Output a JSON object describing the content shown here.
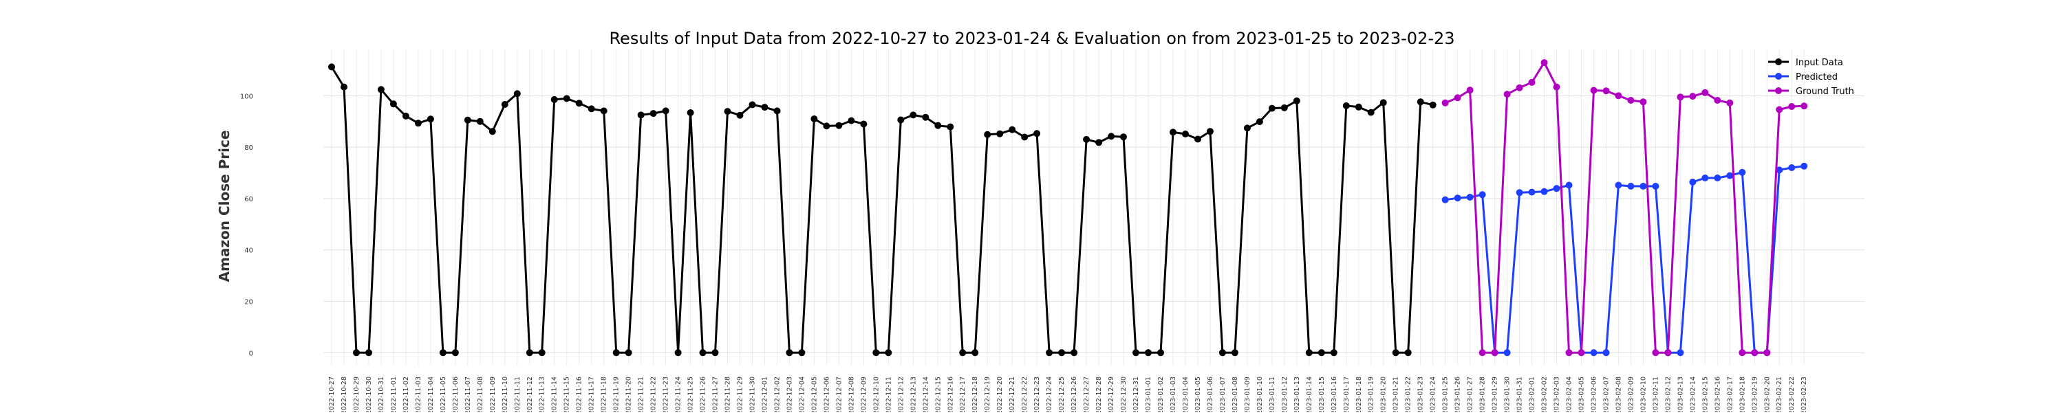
{
  "chart_data": {
    "type": "line",
    "title": "Results of Input Data from 2022-10-27 to 2023-01-24 & Evaluation on from 2023-01-25 to 2023-02-23",
    "xlabel": "",
    "ylabel": "Amazon Close Price",
    "ylim": [
      -5,
      118
    ],
    "yticks": [
      0,
      20,
      40,
      60,
      80,
      100
    ],
    "grid": true,
    "legend_position": "top-right",
    "categories": [
      "2022-10-27",
      "2022-10-28",
      "2022-10-29",
      "2022-10-30",
      "2022-10-31",
      "2022-11-01",
      "2022-11-02",
      "2022-11-03",
      "2022-11-04",
      "2022-11-05",
      "2022-11-06",
      "2022-11-07",
      "2022-11-08",
      "2022-11-09",
      "2022-11-10",
      "2022-11-11",
      "2022-11-12",
      "2022-11-13",
      "2022-11-14",
      "2022-11-15",
      "2022-11-16",
      "2022-11-17",
      "2022-11-18",
      "2022-11-19",
      "2022-11-20",
      "2022-11-21",
      "2022-11-22",
      "2022-11-23",
      "2022-11-24",
      "2022-11-25",
      "2022-11-26",
      "2022-11-27",
      "2022-11-28",
      "2022-11-29",
      "2022-11-30",
      "2022-12-01",
      "2022-12-02",
      "2022-12-03",
      "2022-12-04",
      "2022-12-05",
      "2022-12-06",
      "2022-12-07",
      "2022-12-08",
      "2022-12-09",
      "2022-12-10",
      "2022-12-11",
      "2022-12-12",
      "2022-12-13",
      "2022-12-14",
      "2022-12-15",
      "2022-12-16",
      "2022-12-17",
      "2022-12-18",
      "2022-12-19",
      "2022-12-20",
      "2022-12-21",
      "2022-12-22",
      "2022-12-23",
      "2022-12-24",
      "2022-12-25",
      "2022-12-26",
      "2022-12-27",
      "2022-12-28",
      "2022-12-29",
      "2022-12-30",
      "2022-12-31",
      "2023-01-01",
      "2023-01-02",
      "2023-01-03",
      "2023-01-04",
      "2023-01-05",
      "2023-01-06",
      "2023-01-07",
      "2023-01-08",
      "2023-01-09",
      "2023-01-10",
      "2023-01-11",
      "2023-01-12",
      "2023-01-13",
      "2023-01-14",
      "2023-01-15",
      "2023-01-16",
      "2023-01-17",
      "2023-01-18",
      "2023-01-19",
      "2023-01-20",
      "2023-01-21",
      "2023-01-22",
      "2023-01-23",
      "2023-01-24",
      "2023-01-25",
      "2023-01-26",
      "2023-01-27",
      "2023-01-28",
      "2023-01-29",
      "2023-01-30",
      "2023-01-31",
      "2023-02-01",
      "2023-02-02",
      "2023-02-03",
      "2023-02-04",
      "2023-02-05",
      "2023-02-06",
      "2023-02-07",
      "2023-02-08",
      "2023-02-09",
      "2023-02-10",
      "2023-02-11",
      "2023-02-12",
      "2023-02-13",
      "2023-02-14",
      "2023-02-15",
      "2023-02-16",
      "2023-02-17",
      "2023-02-18",
      "2023-02-19",
      "2023-02-20",
      "2023-02-21",
      "2023-02-22",
      "2023-02-23"
    ],
    "xtick_labels": [
      "2022-10-27",
      "2022-10-28",
      "2022-10-29",
      "2022-10-30",
      "2022-10-31",
      "2022-11-01",
      "2022-11-02",
      "2022-11-03",
      "2022-11-04",
      "2022-11-05",
      "2022-11-06",
      "2022-11-07",
      "2022-11-08",
      "2022-11-09",
      "2022-11-10",
      "2022-11-11",
      "2022-11-12",
      "2022-11-13",
      "2022-11-14",
      "2022-11-15",
      "2022-11-16",
      "2022-11-17",
      "2022-11-18",
      "2022-11-19",
      "2022-11-20",
      "2022-11-21",
      "2022-11-22",
      "2022-11-23",
      "2022-11-24",
      "2022-11-25",
      "2022-11-26",
      "2022-11-27",
      "2022-11-28",
      "2022-11-29",
      "2022-11-30",
      "2022-12-01",
      "2022-12-02",
      "2022-12-03",
      "2022-12-04",
      "2022-12-05",
      "2022-12-06",
      "2022-12-07",
      "2022-12-08",
      "2022-12-09",
      "2022-12-10",
      "2022-12-11",
      "2022-12-12",
      "2022-12-13",
      "2022-12-14",
      "2022-12-15",
      "2022-12-16",
      "2022-12-17",
      "2022-12-18",
      "2022-12-19",
      "2022-12-20",
      "2022-12-21",
      "2022-12-22",
      "2022-12-23",
      "2022-12-24",
      "2022-12-25",
      "2022-12-26",
      "2022-12-27",
      "2022-12-28",
      "2022-12-29",
      "2022-12-30",
      "2022-12-31",
      "2023-01-01",
      "2023-01-02",
      "2023-01-03",
      "2023-01-04",
      "2023-01-05",
      "2023-01-06",
      "2023-01-07",
      "2023-01-08",
      "2023-01-09",
      "2023-01-10",
      "2023-01-11",
      "2023-01-12",
      "2023-01-13",
      "2023-01-14",
      "2023-01-15",
      "2023-01-16",
      "2023-01-17",
      "2023-01-18",
      "2023-01-19",
      "2023-01-20",
      "2023-01-21",
      "2023-01-22",
      "2023-01-23",
      "2023-01-24",
      "2023-01-25",
      "2023-01-26",
      "2023-01-27",
      "2023-01-28",
      "2023-01-29",
      "2023-01-30",
      "2023-01-31",
      "2023-02-01",
      "2023-02-02",
      "2023-02-03",
      "2023-02-04",
      "2023-02-05",
      "2023-02-06",
      "2023-02-07",
      "2023-02-08",
      "2023-02-09",
      "2023-02-10",
      "2023-02-11",
      "2023-02-12",
      "2023-02-13",
      "2023-02-14",
      "2023-02-15",
      "2023-02-16",
      "2023-02-17",
      "2023-02-18",
      "2023-02-19",
      "2023-02-20",
      "2023-02-21",
      "2023-02-22",
      "2023-02-23"
    ],
    "series": [
      {
        "name": "Input Data",
        "color": "#000000",
        "x": [
          "2022-10-27",
          "2022-10-28",
          "2022-10-29",
          "2022-10-30",
          "2022-10-31",
          "2022-11-01",
          "2022-11-02",
          "2022-11-03",
          "2022-11-04",
          "2022-11-05",
          "2022-11-06",
          "2022-11-07",
          "2022-11-08",
          "2022-11-09",
          "2022-11-10",
          "2022-11-11",
          "2022-11-12",
          "2022-11-13",
          "2022-11-14",
          "2022-11-15",
          "2022-11-16",
          "2022-11-17",
          "2022-11-18",
          "2022-11-19",
          "2022-11-20",
          "2022-11-21",
          "2022-11-22",
          "2022-11-23",
          "2022-11-24",
          "2022-11-25",
          "2022-11-26",
          "2022-11-27",
          "2022-11-28",
          "2022-11-29",
          "2022-11-30",
          "2022-12-01",
          "2022-12-02",
          "2022-12-03",
          "2022-12-04",
          "2022-12-05",
          "2022-12-06",
          "2022-12-07",
          "2022-12-08",
          "2022-12-09",
          "2022-12-10",
          "2022-12-11",
          "2022-12-12",
          "2022-12-13",
          "2022-12-14",
          "2022-12-15",
          "2022-12-16",
          "2022-12-17",
          "2022-12-18",
          "2022-12-19",
          "2022-12-20",
          "2022-12-21",
          "2022-12-22",
          "2022-12-23",
          "2022-12-24",
          "2022-12-25",
          "2022-12-26",
          "2022-12-27",
          "2022-12-28",
          "2022-12-29",
          "2022-12-30",
          "2022-12-31",
          "2023-01-01",
          "2023-01-02",
          "2023-01-03",
          "2023-01-04",
          "2023-01-05",
          "2023-01-06",
          "2023-01-07",
          "2023-01-08",
          "2023-01-09",
          "2023-01-10",
          "2023-01-11",
          "2023-01-12",
          "2023-01-13",
          "2023-01-14",
          "2023-01-15",
          "2023-01-16",
          "2023-01-17",
          "2023-01-18",
          "2023-01-19",
          "2023-01-20",
          "2023-01-21",
          "2023-01-22",
          "2023-01-23",
          "2023-01-24"
        ],
        "values": [
          111.2,
          103.4,
          0,
          0,
          102.4,
          96.8,
          92.1,
          89.3,
          90.9,
          0,
          0,
          90.5,
          90.0,
          86.1,
          96.6,
          100.8,
          0,
          0,
          98.5,
          98.9,
          97.1,
          94.9,
          94.1,
          0,
          0,
          92.5,
          93.1,
          94.1,
          0,
          93.4,
          0,
          0,
          93.9,
          92.4,
          96.5,
          95.5,
          94.1,
          0,
          0,
          91.0,
          88.2,
          88.4,
          90.3,
          89.0,
          0,
          0,
          90.6,
          92.5,
          91.6,
          88.4,
          87.9,
          0,
          0,
          84.9,
          85.2,
          86.8,
          83.9,
          85.3,
          0,
          0,
          0,
          83.0,
          81.8,
          84.2,
          84.0,
          0,
          0,
          0,
          85.8,
          85.1,
          83.1,
          86.1,
          0,
          0,
          87.4,
          89.9,
          95.1,
          95.3,
          98.0,
          0,
          0,
          0,
          96.1,
          95.6,
          93.5,
          97.3,
          0,
          0,
          97.6,
          96.4
        ]
      },
      {
        "name": "Predicted",
        "color": "#1f3fff",
        "x": [
          "2023-01-25",
          "2023-01-26",
          "2023-01-27",
          "2023-01-28",
          "2023-01-29",
          "2023-01-30",
          "2023-01-31",
          "2023-02-01",
          "2023-02-02",
          "2023-02-03",
          "2023-02-04",
          "2023-02-05",
          "2023-02-06",
          "2023-02-07",
          "2023-02-08",
          "2023-02-09",
          "2023-02-10",
          "2023-02-11",
          "2023-02-12",
          "2023-02-13",
          "2023-02-14",
          "2023-02-15",
          "2023-02-16",
          "2023-02-17",
          "2023-02-18",
          "2023-02-19",
          "2023-02-20",
          "2023-02-21",
          "2023-02-22",
          "2023-02-23"
        ],
        "values": [
          59.5,
          60.2,
          60.5,
          61.5,
          0,
          0,
          62.3,
          62.5,
          62.7,
          63.9,
          65.2,
          0,
          0,
          0,
          65.2,
          64.8,
          64.8,
          64.8,
          0,
          0,
          66.4,
          68.0,
          68.0,
          68.9,
          70.2,
          0,
          0,
          71.1,
          72.0,
          72.6
        ]
      },
      {
        "name": "Ground Truth",
        "color": "#b000c0",
        "x": [
          "2023-01-25",
          "2023-01-26",
          "2023-01-27",
          "2023-01-28",
          "2023-01-29",
          "2023-01-30",
          "2023-01-31",
          "2023-02-01",
          "2023-02-02",
          "2023-02-03",
          "2023-02-04",
          "2023-02-05",
          "2023-02-06",
          "2023-02-07",
          "2023-02-08",
          "2023-02-09",
          "2023-02-10",
          "2023-02-11",
          "2023-02-12",
          "2023-02-13",
          "2023-02-14",
          "2023-02-15",
          "2023-02-16",
          "2023-02-17",
          "2023-02-18",
          "2023-02-19",
          "2023-02-20",
          "2023-02-21",
          "2023-02-22",
          "2023-02-23"
        ],
        "values": [
          97.2,
          99.2,
          102.2,
          0,
          0,
          100.6,
          103.1,
          105.2,
          112.9,
          103.4,
          0,
          0,
          102.1,
          101.9,
          100.0,
          98.2,
          97.6,
          0,
          0,
          99.5,
          99.8,
          101.2,
          98.2,
          97.2,
          0,
          0,
          0,
          94.6,
          95.8,
          96.0
        ]
      }
    ]
  }
}
